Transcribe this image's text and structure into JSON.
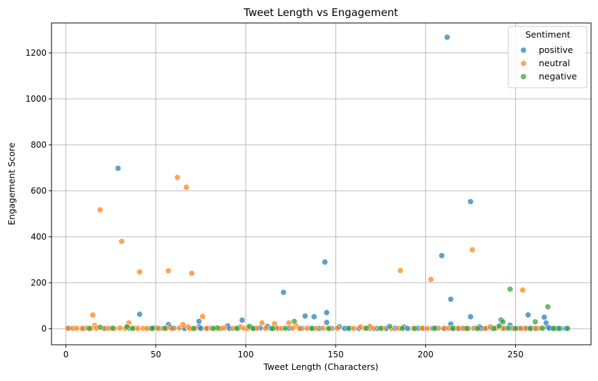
{
  "chart_data": {
    "type": "scatter",
    "title": "Tweet Length vs Engagement",
    "xlabel": "Tweet Length (Characters)",
    "ylabel": "Engagement Score",
    "xlim": [
      -8,
      292
    ],
    "ylim": [
      -70,
      1330
    ],
    "xticks": [
      0,
      50,
      100,
      150,
      200,
      250
    ],
    "yticks": [
      0,
      200,
      400,
      600,
      800,
      1000,
      1200
    ],
    "grid": true,
    "legend": {
      "title": "Sentiment",
      "placement": "top-right"
    },
    "series": [
      {
        "name": "positive",
        "color": "#1f77b4",
        "points": [
          [
            29,
            698
          ],
          [
            212,
            1268
          ],
          [
            225,
            553
          ],
          [
            209,
            318
          ],
          [
            144,
            290
          ],
          [
            121,
            158
          ],
          [
            214,
            128
          ],
          [
            41,
            63
          ],
          [
            145,
            70
          ],
          [
            133,
            55
          ],
          [
            138,
            52
          ],
          [
            225,
            52
          ],
          [
            257,
            60
          ],
          [
            266,
            50
          ],
          [
            242,
            38
          ],
          [
            98,
            37
          ],
          [
            74,
            32
          ],
          [
            145,
            27
          ],
          [
            267,
            25
          ],
          [
            214,
            20
          ],
          [
            57,
            18
          ],
          [
            247,
            15
          ],
          [
            90,
            12
          ],
          [
            112,
            10
          ],
          [
            152,
            8
          ],
          [
            74,
            8
          ],
          [
            188,
            7
          ],
          [
            230,
            8
          ],
          [
            58,
            6
          ],
          [
            240,
            5
          ],
          [
            103,
            5
          ],
          [
            268,
            6
          ],
          [
            2,
            2
          ],
          [
            10,
            1
          ],
          [
            22,
            1
          ],
          [
            35,
            2
          ],
          [
            47,
            1
          ],
          [
            49,
            3
          ],
          [
            52,
            1
          ],
          [
            60,
            2
          ],
          [
            66,
            1
          ],
          [
            75,
            1
          ],
          [
            79,
            2
          ],
          [
            85,
            1
          ],
          [
            91,
            1
          ],
          [
            96,
            2
          ],
          [
            105,
            1
          ],
          [
            108,
            3
          ],
          [
            114,
            1
          ],
          [
            118,
            1
          ],
          [
            124,
            2
          ],
          [
            131,
            1
          ],
          [
            136,
            2
          ],
          [
            141,
            1
          ],
          [
            148,
            1
          ],
          [
            155,
            1
          ],
          [
            158,
            2
          ],
          [
            163,
            1
          ],
          [
            169,
            2
          ],
          [
            173,
            1
          ],
          [
            178,
            1
          ],
          [
            183,
            2
          ],
          [
            190,
            1
          ],
          [
            196,
            2
          ],
          [
            199,
            1
          ],
          [
            204,
            1
          ],
          [
            207,
            2
          ],
          [
            211,
            1
          ],
          [
            216,
            2
          ],
          [
            219,
            1
          ],
          [
            222,
            1
          ],
          [
            227,
            2
          ],
          [
            231,
            1
          ],
          [
            234,
            2
          ],
          [
            237,
            1
          ],
          [
            244,
            2
          ],
          [
            249,
            1
          ],
          [
            252,
            2
          ],
          [
            255,
            1
          ],
          [
            259,
            2
          ],
          [
            262,
            1
          ],
          [
            269,
            2
          ],
          [
            272,
            1
          ],
          [
            275,
            1
          ],
          [
            278,
            1
          ]
        ]
      },
      {
        "name": "neutral",
        "color": "#ff7f0e",
        "points": [
          [
            62,
            658
          ],
          [
            67,
            615
          ],
          [
            19,
            517
          ],
          [
            31,
            380
          ],
          [
            226,
            343
          ],
          [
            41,
            247
          ],
          [
            57,
            252
          ],
          [
            70,
            241
          ],
          [
            186,
            253
          ],
          [
            203,
            214
          ],
          [
            254,
            168
          ],
          [
            15,
            59
          ],
          [
            76,
            53
          ],
          [
            35,
            25
          ],
          [
            109,
            25
          ],
          [
            124,
            25
          ],
          [
            116,
            22
          ],
          [
            65,
            18
          ],
          [
            16,
            14
          ],
          [
            128,
            12
          ],
          [
            34,
            10
          ],
          [
            97,
            8
          ],
          [
            68,
            8
          ],
          [
            164,
            8
          ],
          [
            169,
            10
          ],
          [
            236,
            8
          ],
          [
            1,
            2
          ],
          [
            4,
            1
          ],
          [
            6,
            2
          ],
          [
            9,
            1
          ],
          [
            12,
            3
          ],
          [
            14,
            1
          ],
          [
            17,
            2
          ],
          [
            21,
            1
          ],
          [
            24,
            2
          ],
          [
            27,
            1
          ],
          [
            30,
            3
          ],
          [
            33,
            1
          ],
          [
            38,
            2
          ],
          [
            40,
            1
          ],
          [
            43,
            2
          ],
          [
            45,
            1
          ],
          [
            51,
            2
          ],
          [
            54,
            1
          ],
          [
            56,
            2
          ],
          [
            59,
            1
          ],
          [
            63,
            3
          ],
          [
            69,
            1
          ],
          [
            72,
            2
          ],
          [
            78,
            1
          ],
          [
            81,
            2
          ],
          [
            86,
            1
          ],
          [
            88,
            3
          ],
          [
            93,
            1
          ],
          [
            99,
            2
          ],
          [
            101,
            1
          ],
          [
            106,
            2
          ],
          [
            111,
            1
          ],
          [
            117,
            3
          ],
          [
            120,
            1
          ],
          [
            126,
            2
          ],
          [
            130,
            1
          ],
          [
            134,
            2
          ],
          [
            139,
            1
          ],
          [
            143,
            2
          ],
          [
            147,
            1
          ],
          [
            151,
            2
          ],
          [
            160,
            1
          ],
          [
            166,
            2
          ],
          [
            171,
            1
          ],
          [
            176,
            2
          ],
          [
            181,
            1
          ],
          [
            185,
            2
          ],
          [
            193,
            1
          ],
          [
            198,
            2
          ],
          [
            201,
            1
          ],
          [
            206,
            2
          ],
          [
            210,
            1
          ],
          [
            213,
            2
          ],
          [
            218,
            1
          ],
          [
            221,
            2
          ],
          [
            224,
            1
          ],
          [
            228,
            2
          ],
          [
            233,
            1
          ],
          [
            239,
            2
          ],
          [
            243,
            1
          ],
          [
            248,
            2
          ],
          [
            253,
            1
          ],
          [
            256,
            2
          ],
          [
            261,
            1
          ],
          [
            264,
            2
          ]
        ]
      },
      {
        "name": "negative",
        "color": "#2ca02c",
        "points": [
          [
            247,
            172
          ],
          [
            268,
            95
          ],
          [
            127,
            32
          ],
          [
            261,
            30
          ],
          [
            243,
            30
          ],
          [
            241,
            12
          ],
          [
            102,
            10
          ],
          [
            19,
            6
          ],
          [
            34,
            8
          ],
          [
            180,
            10
          ],
          [
            84,
            3
          ],
          [
            13,
            1
          ],
          [
            26,
            2
          ],
          [
            37,
            1
          ],
          [
            48,
            1
          ],
          [
            55,
            2
          ],
          [
            71,
            1
          ],
          [
            82,
            1
          ],
          [
            95,
            2
          ],
          [
            104,
            1
          ],
          [
            115,
            1
          ],
          [
            122,
            2
          ],
          [
            137,
            1
          ],
          [
            146,
            1
          ],
          [
            157,
            1
          ],
          [
            167,
            2
          ],
          [
            175,
            1
          ],
          [
            187,
            1
          ],
          [
            194,
            1
          ],
          [
            205,
            2
          ],
          [
            215,
            1
          ],
          [
            223,
            1
          ],
          [
            229,
            1
          ],
          [
            238,
            1
          ],
          [
            246,
            2
          ],
          [
            250,
            1
          ],
          [
            258,
            1
          ],
          [
            265,
            2
          ],
          [
            271,
            1
          ],
          [
            274,
            1
          ],
          [
            279,
            1
          ]
        ]
      }
    ]
  }
}
